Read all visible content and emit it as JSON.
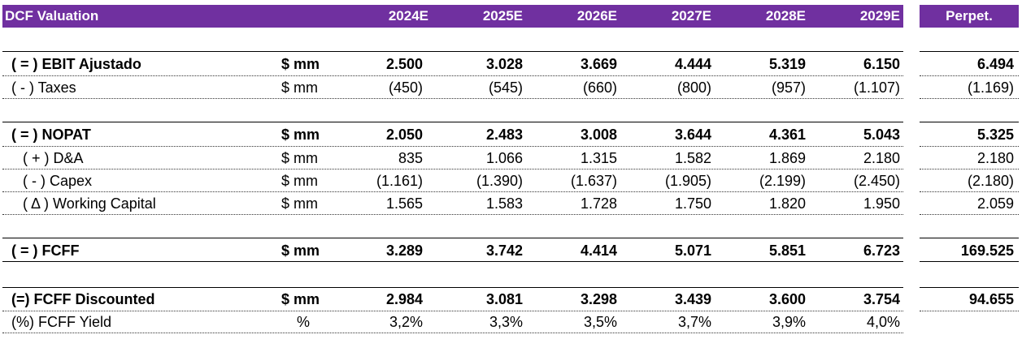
{
  "header": {
    "title": "DCF Valuation",
    "years": [
      "2024E",
      "2025E",
      "2026E",
      "2027E",
      "2028E",
      "2029E"
    ],
    "perpetuity": "Perpet."
  },
  "rows": [
    {
      "label": "( = ) EBIT Ajustado",
      "unit": "$ mm",
      "values": [
        "2.500",
        "3.028",
        "3.669",
        "4.444",
        "5.319",
        "6.150"
      ],
      "perp": "6.494"
    },
    {
      "label": "( - ) Taxes",
      "unit": "$ mm",
      "values": [
        "(450)",
        "(545)",
        "(660)",
        "(800)",
        "(957)",
        "(1.107)"
      ],
      "perp": "(1.169)"
    },
    {
      "label": "( = ) NOPAT",
      "unit": "$ mm",
      "values": [
        "2.050",
        "2.483",
        "3.008",
        "3.644",
        "4.361",
        "5.043"
      ],
      "perp": "5.325"
    },
    {
      "label": "( + ) D&A",
      "unit": "$ mm",
      "values": [
        "835",
        "1.066",
        "1.315",
        "1.582",
        "1.869",
        "2.180"
      ],
      "perp": "2.180"
    },
    {
      "label": "( - ) Capex",
      "unit": "$ mm",
      "values": [
        "(1.161)",
        "(1.390)",
        "(1.637)",
        "(1.905)",
        "(2.199)",
        "(2.450)"
      ],
      "perp": "(2.180)"
    },
    {
      "label": "( Δ ) Working Capital",
      "unit": "$ mm",
      "values": [
        "1.565",
        "1.583",
        "1.728",
        "1.750",
        "1.820",
        "1.950"
      ],
      "perp": "2.059"
    },
    {
      "label": "( = ) FCFF",
      "unit": "$ mm",
      "values": [
        "3.289",
        "3.742",
        "4.414",
        "5.071",
        "5.851",
        "6.723"
      ],
      "perp": "169.525"
    },
    {
      "label": "(=) FCFF Discounted",
      "unit": "$ mm",
      "values": [
        "2.984",
        "3.081",
        "3.298",
        "3.439",
        "3.600",
        "3.754"
      ],
      "perp": "94.655"
    },
    {
      "label": "(%) FCFF Yield",
      "unit": "%",
      "values": [
        "3,2%",
        "3,3%",
        "3,5%",
        "3,7%",
        "3,9%",
        "4,0%"
      ],
      "perp": ""
    }
  ],
  "colors": {
    "header_bg": "#7030a0",
    "header_text": "#ffffff"
  }
}
